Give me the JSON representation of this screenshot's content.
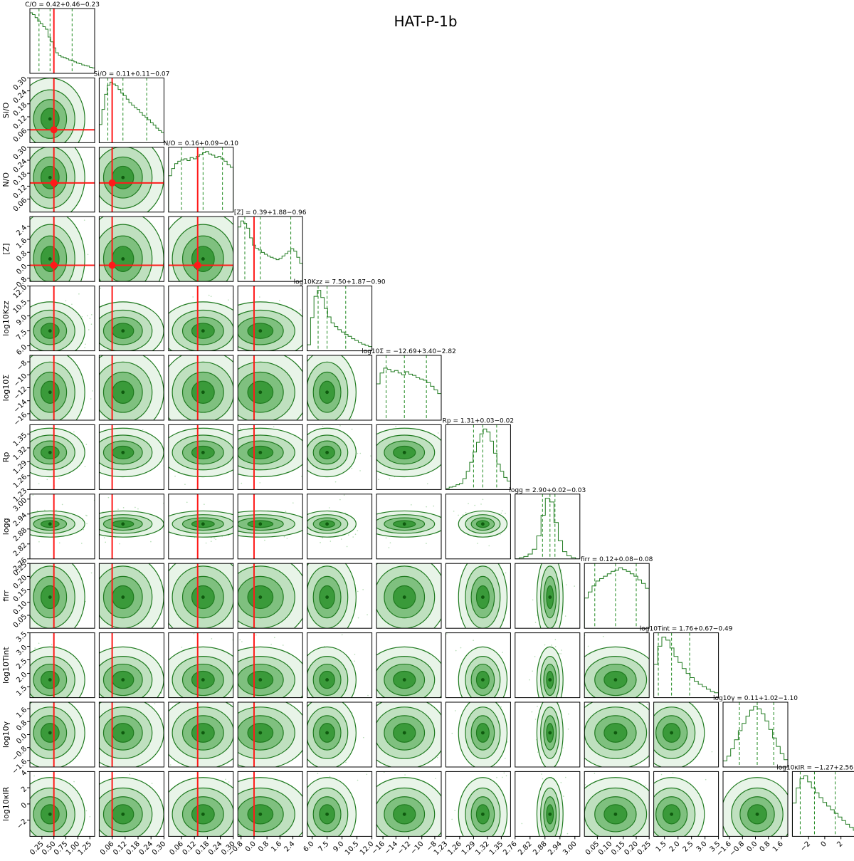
{
  "figure": {
    "title": "HAT-P-1b",
    "colors": {
      "main": "#1f7a1f",
      "truth": "#ff1a1a",
      "quantile": "#1f8a1f"
    }
  },
  "chart_data": {
    "type": "corner",
    "title": "HAT-P-1b",
    "grid": false,
    "parameters": [
      {
        "key": "co",
        "label": "C/O",
        "title": "C/O = 0.42+0.46−0.23",
        "range": [
          0.0,
          1.35
        ],
        "ticks": [
          "0.25",
          "0.50",
          "0.75",
          "1.00",
          "1.25"
        ],
        "tick_values": [
          0.25,
          0.5,
          0.75,
          1.0,
          1.25
        ],
        "median": 0.42,
        "q16": 0.19,
        "q84": 0.88,
        "truth": 0.5
      },
      {
        "key": "sio",
        "label": "Si/O",
        "title": "Si/O = 0.11+0.11−0.07",
        "range": [
          0.0,
          0.3
        ],
        "ticks": [
          "0.06",
          "0.12",
          "0.18",
          "0.24",
          "0.30"
        ],
        "tick_values": [
          0.06,
          0.12,
          0.18,
          0.24,
          0.3
        ],
        "median": 0.11,
        "q16": 0.04,
        "q84": 0.22,
        "truth": 0.06
      },
      {
        "key": "no",
        "label": "N/O",
        "title": "N/O = 0.16+0.09−0.10",
        "range": [
          0.0,
          0.3
        ],
        "ticks": [
          "0.06",
          "0.12",
          "0.18",
          "0.24",
          "0.30"
        ],
        "tick_values": [
          0.06,
          0.12,
          0.18,
          0.24,
          0.3
        ],
        "median": 0.16,
        "q16": 0.06,
        "q84": 0.25,
        "truth": 0.135
      },
      {
        "key": "z",
        "label": "[Z]",
        "title": "[Z] = 0.39+1.88−0.96",
        "range": [
          -1.0,
          3.0
        ],
        "ticks": [
          "−0.8",
          "0.0",
          "0.8",
          "1.6",
          "2.4"
        ],
        "tick_values": [
          -0.8,
          0.0,
          0.8,
          1.6,
          2.4
        ],
        "median": 0.39,
        "q16": -0.57,
        "q84": 2.27,
        "truth": 0.0
      },
      {
        "key": "kzz",
        "label": "log10Kzz",
        "title": "log10Kzz = 7.50+1.87−0.90",
        "range": [
          5.5,
          12.0
        ],
        "ticks": [
          "6.0",
          "7.5",
          "9.0",
          "10.5",
          "12.0"
        ],
        "tick_values": [
          6.0,
          7.5,
          9.0,
          10.5,
          12.0
        ],
        "median": 7.5,
        "q16": 6.6,
        "q84": 9.37,
        "truth": null
      },
      {
        "key": "sig",
        "label": "log10Σ",
        "title": "log10Σ = −12.69+3.40−2.82",
        "range": [
          -17.0,
          -7.0
        ],
        "ticks": [
          "−16",
          "−14",
          "−12",
          "−10",
          "−8"
        ],
        "tick_values": [
          -16,
          -14,
          -12,
          -10,
          -8
        ],
        "median": -12.69,
        "q16": -15.51,
        "q84": -9.29,
        "truth": null
      },
      {
        "key": "rp",
        "label": "Rp",
        "title": "Rp = 1.31+0.03−0.02",
        "range": [
          1.23,
          1.37
        ],
        "ticks": [
          "1.23",
          "1.26",
          "1.29",
          "1.32",
          "1.35"
        ],
        "tick_values": [
          1.23,
          1.26,
          1.29,
          1.32,
          1.35
        ],
        "median": 1.31,
        "q16": 1.29,
        "q84": 1.34,
        "truth": null
      },
      {
        "key": "logg",
        "label": "logg",
        "title": "logg = 2.90+0.02−0.03",
        "range": [
          2.76,
          3.02
        ],
        "ticks": [
          "2.76",
          "2.82",
          "2.88",
          "2.94",
          "3.00"
        ],
        "tick_values": [
          2.76,
          2.82,
          2.88,
          2.94,
          3.0
        ],
        "median": 2.9,
        "q16": 2.87,
        "q84": 2.92,
        "truth": null
      },
      {
        "key": "firr",
        "label": "firr",
        "title": "firr = 0.12+0.08−0.08",
        "range": [
          0.0,
          0.25
        ],
        "ticks": [
          "0.05",
          "0.10",
          "0.15",
          "0.20",
          "0.25"
        ],
        "tick_values": [
          0.05,
          0.1,
          0.15,
          0.2,
          0.25
        ],
        "median": 0.12,
        "q16": 0.04,
        "q84": 0.2,
        "truth": null
      },
      {
        "key": "tint",
        "label": "log10Tint",
        "title": "log10Tint = 1.76+0.67−0.49",
        "range": [
          1.1,
          3.5
        ],
        "ticks": [
          "1.5",
          "2.0",
          "2.5",
          "3.0",
          "3.5"
        ],
        "tick_values": [
          1.5,
          2.0,
          2.5,
          3.0,
          3.5
        ],
        "median": 1.76,
        "q16": 1.27,
        "q84": 2.43,
        "truth": null
      },
      {
        "key": "gam",
        "label": "log10γ",
        "title": "log10γ = 0.11+1.02−1.10",
        "range": [
          -2.0,
          2.0
        ],
        "ticks": [
          "−1.6",
          "−0.8",
          "0.0",
          "0.8",
          "1.6"
        ],
        "tick_values": [
          -1.6,
          -0.8,
          0.0,
          0.8,
          1.6
        ],
        "median": 0.11,
        "q16": -0.99,
        "q84": 1.13,
        "truth": null
      },
      {
        "key": "kir",
        "label": "log10κIR",
        "title": "log10κIR = −1.27+2.56−1.76",
        "range": [
          -4.0,
          4.0
        ],
        "ticks": [
          "−2",
          "0",
          "2",
          "4"
        ],
        "tick_values": [
          -2,
          0,
          2,
          4
        ],
        "median": -1.27,
        "q16": -3.03,
        "q84": 1.29,
        "truth": null
      }
    ],
    "histogram_shapes": [
      [
        1.0,
        0.97,
        0.92,
        0.86,
        0.82,
        0.77,
        0.73,
        0.6,
        0.52,
        0.42,
        0.34,
        0.3,
        0.27,
        0.26,
        0.24,
        0.22,
        0.21,
        0.19,
        0.17,
        0.16,
        0.14,
        0.13,
        0.12,
        0.1,
        0.09
      ],
      [
        0.3,
        0.55,
        0.8,
        0.95,
        1.0,
        0.97,
        0.94,
        0.88,
        0.82,
        0.78,
        0.72,
        0.66,
        0.62,
        0.58,
        0.55,
        0.5,
        0.45,
        0.42,
        0.38,
        0.33,
        0.29,
        0.24,
        0.2,
        0.17
      ],
      [
        0.6,
        0.72,
        0.8,
        0.84,
        0.86,
        0.88,
        0.85,
        0.9,
        0.88,
        0.92,
        0.95,
        0.98,
        1.0,
        0.96,
        0.94,
        0.9,
        0.92,
        0.88,
        0.84,
        0.78,
        0.74
      ],
      [
        0.9,
        1.0,
        0.96,
        0.88,
        0.72,
        0.6,
        0.55,
        0.52,
        0.48,
        0.45,
        0.42,
        0.4,
        0.38,
        0.36,
        0.38,
        0.42,
        0.46,
        0.5,
        0.54,
        0.5,
        0.4,
        0.3
      ],
      [
        0.1,
        0.55,
        0.9,
        1.0,
        0.88,
        0.7,
        0.56,
        0.46,
        0.4,
        0.35,
        0.31,
        0.27,
        0.24,
        0.2,
        0.17,
        0.14,
        0.11,
        0.09,
        0.07
      ],
      [
        0.6,
        0.78,
        0.86,
        0.84,
        0.8,
        0.82,
        0.78,
        0.75,
        0.8,
        0.76,
        0.74,
        0.7,
        0.68,
        0.66,
        0.62,
        0.56,
        0.5,
        0.44
      ],
      [
        0.02,
        0.04,
        0.05,
        0.08,
        0.1,
        0.18,
        0.3,
        0.45,
        0.62,
        0.78,
        0.92,
        1.0,
        0.95,
        0.8,
        0.6,
        0.42,
        0.3,
        0.2,
        0.14
      ],
      [
        0.0,
        0.02,
        0.04,
        0.08,
        0.16,
        0.38,
        0.72,
        1.0,
        0.94,
        0.6,
        0.3,
        0.12,
        0.05,
        0.02,
        0.0
      ],
      [
        0.5,
        0.6,
        0.7,
        0.78,
        0.82,
        0.86,
        0.9,
        0.94,
        0.96,
        1.0,
        0.97,
        0.94,
        0.9,
        0.86,
        0.8,
        0.74,
        0.66
      ],
      [
        0.55,
        0.85,
        1.0,
        0.95,
        0.82,
        0.68,
        0.58,
        0.48,
        0.4,
        0.33,
        0.27,
        0.22,
        0.18,
        0.14,
        0.1,
        0.08
      ],
      [
        0.1,
        0.18,
        0.3,
        0.45,
        0.6,
        0.72,
        0.84,
        0.94,
        1.0,
        0.96,
        0.88,
        0.76,
        0.62,
        0.48,
        0.34,
        0.22,
        0.12
      ],
      [
        0.55,
        0.8,
        0.95,
        1.0,
        0.9,
        0.8,
        0.72,
        0.64,
        0.56,
        0.5,
        0.44,
        0.38,
        0.32,
        0.26,
        0.2,
        0.15,
        0.1
      ]
    ]
  }
}
